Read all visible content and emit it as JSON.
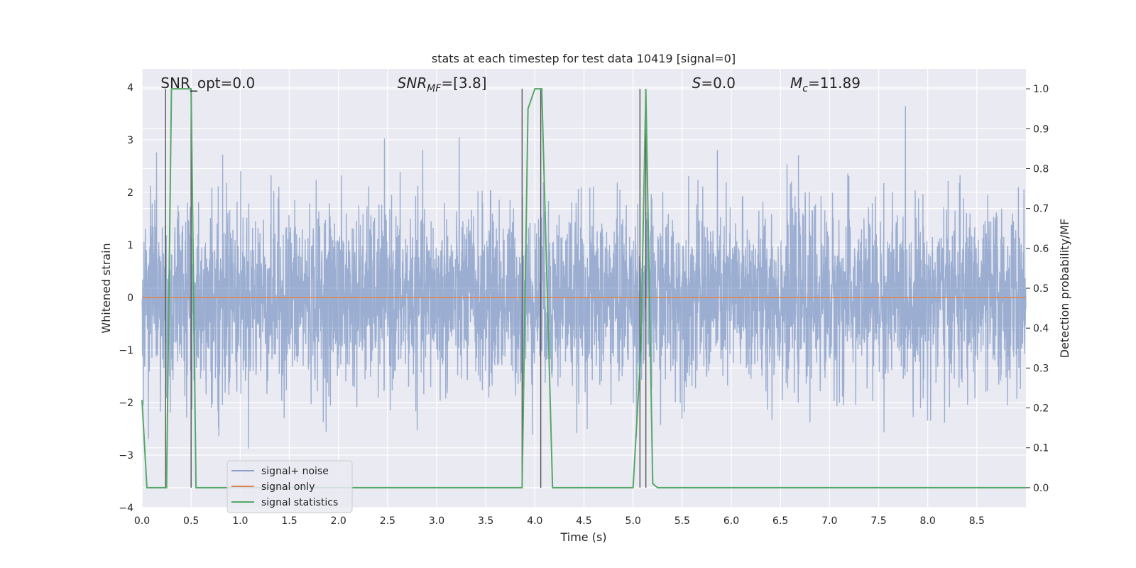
{
  "chart_data": {
    "type": "line",
    "title": "stats at each timestep for test data 10419 [signal=0]",
    "xlabel": "Time (s)",
    "ylabel": "Whitened strain",
    "y2label": "Detection probability/MF",
    "xlim": [
      0,
      9.0
    ],
    "ylim": [
      -4.0,
      4.35
    ],
    "y2lim": [
      -0.05,
      1.05
    ],
    "xticks": [
      0.0,
      0.5,
      1.0,
      1.5,
      2.0,
      2.5,
      3.0,
      3.5,
      4.0,
      4.5,
      5.0,
      5.5,
      6.0,
      6.5,
      7.0,
      7.5,
      8.0,
      8.5
    ],
    "xtick_labels": [
      "0.0",
      "0.5",
      "1.0",
      "1.5",
      "2.0",
      "2.5",
      "3.0",
      "3.5",
      "4.0",
      "4.5",
      "5.0",
      "5.5",
      "6.0",
      "6.5",
      "7.0",
      "7.5",
      "8.0",
      "8.5"
    ],
    "yticks": [
      4,
      3,
      2,
      1,
      0,
      -1,
      -2,
      -3,
      -4
    ],
    "ytick_labels": [
      "4",
      "3",
      "2",
      "1",
      "0",
      "−1",
      "−2",
      "−3",
      "−4"
    ],
    "y2ticks": [
      1.0,
      0.9,
      0.8,
      0.7,
      0.6,
      0.5,
      0.4,
      0.3,
      0.2,
      0.1,
      0.0
    ],
    "y2tick_labels": [
      "1.0",
      "0.9",
      "0.8",
      "0.7",
      "0.6",
      "0.5",
      "0.4",
      "0.3",
      "0.2",
      "0.1",
      "0.0"
    ],
    "grid": true,
    "legend_position": "lower-left",
    "series": [
      {
        "name": "signal+ noise",
        "color": "#4c72b0",
        "axis": "left",
        "description": "whitened noise, std ~0.85, peaks up to ~3.8",
        "noise_std": 0.85,
        "points": 4000
      },
      {
        "name": "signal only",
        "color": "#dd8452",
        "axis": "left",
        "x": [
          0.0,
          9.0
        ],
        "y": [
          0.0,
          0.0
        ]
      },
      {
        "name": "signal statistics",
        "color": "#55a868",
        "axis": "right",
        "x": [
          0.0,
          0.05,
          0.25,
          0.3,
          0.5,
          0.55,
          3.87,
          3.93,
          4.0,
          4.07,
          4.18,
          5.0,
          5.08,
          5.13,
          5.2,
          5.25,
          9.0
        ],
        "y": [
          0.22,
          0.0,
          0.0,
          1.0,
          1.0,
          0.0,
          0.0,
          0.95,
          1.0,
          1.0,
          0.0,
          0.0,
          0.35,
          1.0,
          0.01,
          0.0,
          0.0
        ]
      }
    ],
    "vertical_markers": [
      0.24,
      0.5,
      3.87,
      4.06,
      5.07,
      5.13
    ],
    "annotations": [
      {
        "text": "SNR_opt=0.0",
        "x": 0.19
      },
      {
        "text": "SNR",
        "sub": "MF",
        "suffix": "=[3.8]",
        "x": 2.6,
        "italic": true
      },
      {
        "text": "S",
        "suffix": "=0.0",
        "x": 5.6,
        "italic": true
      },
      {
        "text": "M",
        "sub": "c",
        "suffix": "=11.89",
        "x": 6.6,
        "italic": true
      }
    ]
  }
}
